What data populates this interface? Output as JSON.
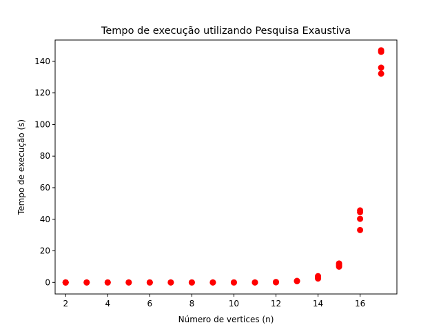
{
  "chart_data": {
    "type": "scatter",
    "title": "Tempo de execução utilizando Pesquisa Exaustiva",
    "xlabel": "Número de vertices (n)",
    "ylabel": "Tempo de execução (s)",
    "xlim": [
      1.5,
      17.75
    ],
    "ylim": [
      -7.3,
      153.5
    ],
    "xticks": [
      2,
      4,
      6,
      8,
      10,
      12,
      14,
      16
    ],
    "yticks": [
      0,
      20,
      40,
      60,
      80,
      100,
      120,
      140
    ],
    "grid": false,
    "marker_color": "#ff0000",
    "series": [
      {
        "points": [
          [
            2,
            0
          ],
          [
            2,
            0
          ],
          [
            2,
            0
          ],
          [
            2,
            0
          ],
          [
            3,
            0
          ],
          [
            3,
            0
          ],
          [
            4,
            0
          ],
          [
            4,
            0
          ],
          [
            5,
            0
          ],
          [
            5,
            0
          ],
          [
            6,
            0
          ],
          [
            6,
            0
          ],
          [
            7,
            0
          ],
          [
            7,
            0
          ],
          [
            8,
            0
          ],
          [
            8,
            0
          ],
          [
            9,
            0
          ],
          [
            9,
            0
          ],
          [
            10,
            0
          ],
          [
            10,
            0
          ],
          [
            11,
            0
          ],
          [
            11,
            0
          ],
          [
            12,
            0.1
          ],
          [
            12,
            0.3
          ],
          [
            13,
            0.8
          ],
          [
            13,
            1.0
          ],
          [
            14,
            2.5
          ],
          [
            14,
            3.3
          ],
          [
            14,
            4.0
          ],
          [
            15,
            10.0
          ],
          [
            15,
            11.0
          ],
          [
            15,
            12.0
          ],
          [
            16,
            33.2
          ],
          [
            16,
            40.3
          ],
          [
            16,
            44.5
          ],
          [
            16,
            45.6
          ],
          [
            17,
            132.2
          ],
          [
            17,
            136.0
          ],
          [
            17,
            146.0
          ],
          [
            17,
            147.0
          ]
        ]
      }
    ]
  }
}
